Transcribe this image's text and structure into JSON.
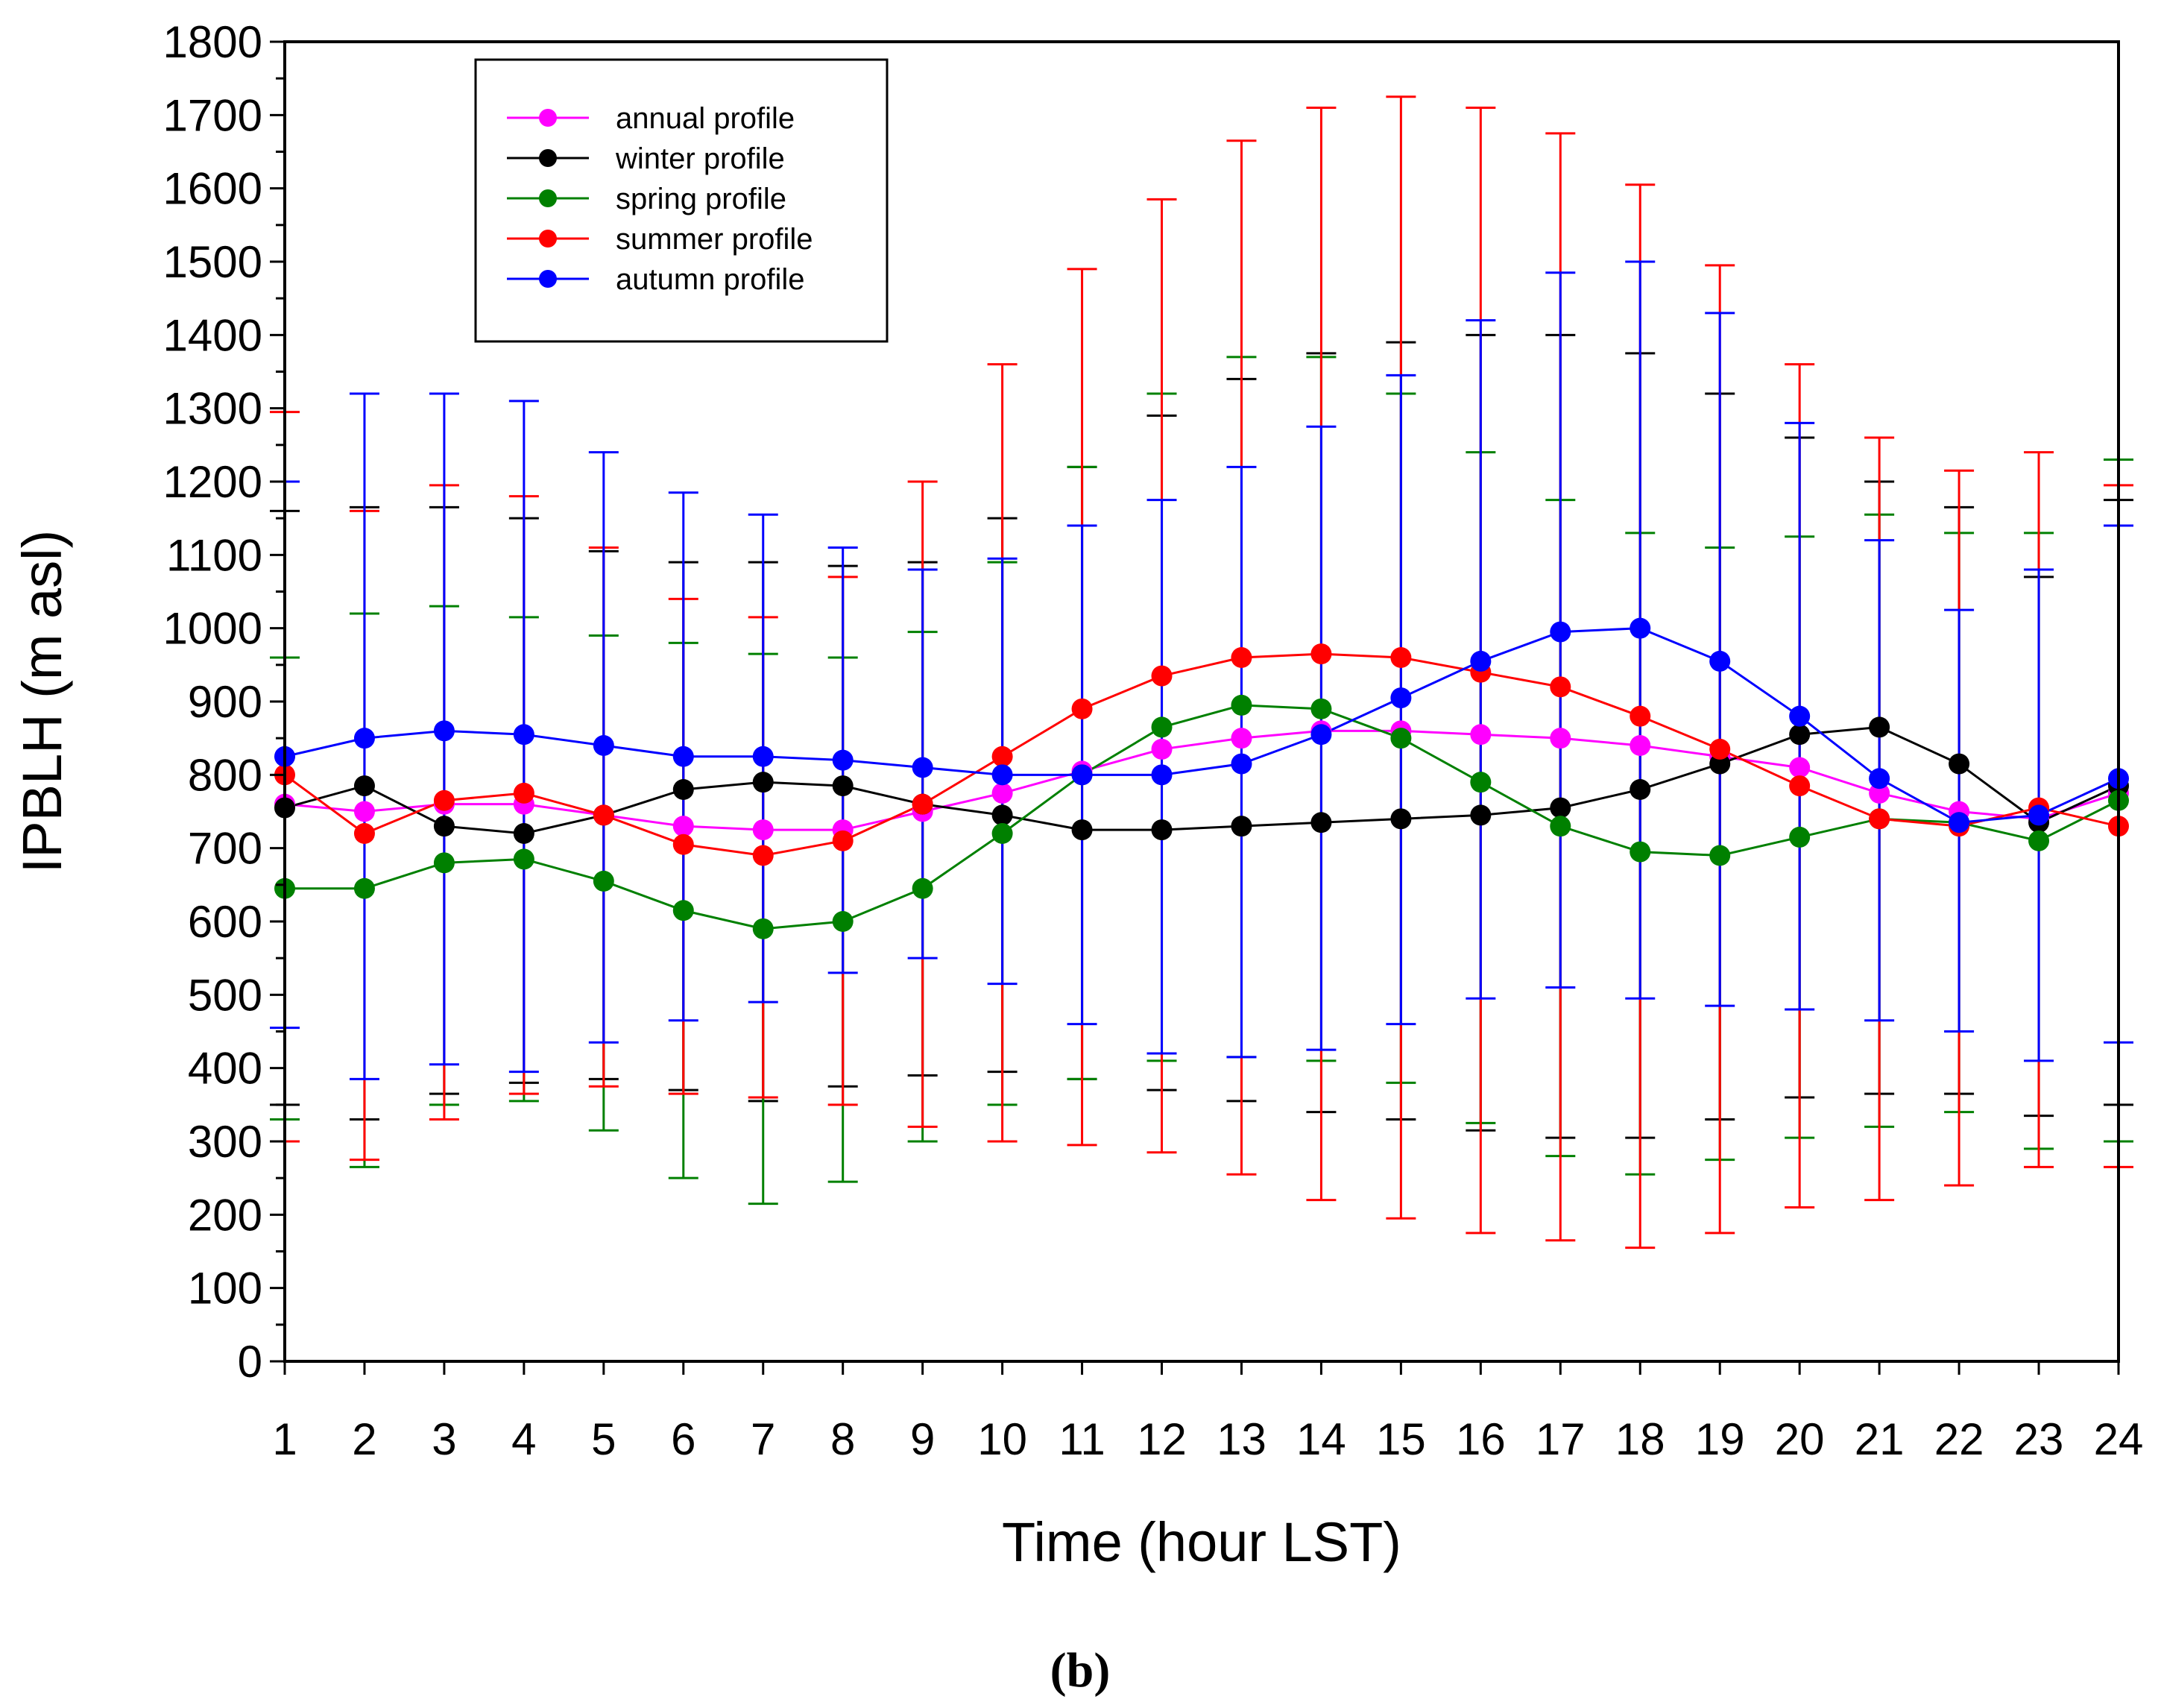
{
  "chart_data": {
    "type": "line",
    "title": "",
    "xlabel": "Time (hour LST)",
    "ylabel": "IPBLH (m asl)",
    "caption": "(b)",
    "x": [
      1,
      2,
      3,
      4,
      5,
      6,
      7,
      8,
      9,
      10,
      11,
      12,
      13,
      14,
      15,
      16,
      17,
      18,
      19,
      20,
      21,
      22,
      23,
      24
    ],
    "x_tick_labels": [
      "1",
      "2",
      "3",
      "4",
      "5",
      "6",
      "7",
      "8",
      "9",
      "10",
      "11",
      "12",
      "13",
      "14",
      "15",
      "16",
      "17",
      "18",
      "19",
      "20",
      "21",
      "22",
      "23",
      "24"
    ],
    "xlim": [
      1,
      24
    ],
    "ylim": [
      0,
      1800
    ],
    "y_ticks": [
      0,
      100,
      200,
      300,
      400,
      500,
      600,
      700,
      800,
      900,
      1000,
      1100,
      1200,
      1300,
      1400,
      1500,
      1600,
      1700,
      1800
    ],
    "y_tick_labels": [
      "0",
      "100",
      "200",
      "300",
      "400",
      "500",
      "600",
      "700",
      "800",
      "900",
      "1000",
      "1100",
      "1200",
      "1300",
      "1400",
      "1500",
      "1600",
      "1700",
      "1800"
    ],
    "grid": false,
    "legend_position": "top-left",
    "series": [
      {
        "name": "annual profile",
        "color": "#ff00ff",
        "values": [
          760,
          750,
          760,
          760,
          745,
          730,
          725,
          725,
          750,
          775,
          805,
          835,
          850,
          860,
          860,
          855,
          850,
          840,
          825,
          810,
          775,
          750,
          740,
          775
        ],
        "error_upper": null,
        "error_lower": null
      },
      {
        "name": "winter profile",
        "color": "#000000",
        "values": [
          755,
          785,
          730,
          720,
          745,
          780,
          790,
          785,
          760,
          745,
          725,
          725,
          730,
          735,
          740,
          745,
          755,
          780,
          815,
          855,
          865,
          815,
          735,
          785
        ],
        "error_upper": [
          1160,
          1165,
          1165,
          1150,
          1105,
          1090,
          1090,
          1085,
          1090,
          1150,
          1220,
          1290,
          1340,
          1375,
          1390,
          1400,
          1400,
          1375,
          1320,
          1260,
          1200,
          1165,
          1070,
          1175
        ],
        "error_lower": [
          350,
          330,
          365,
          380,
          385,
          370,
          355,
          375,
          390,
          395,
          385,
          370,
          355,
          340,
          330,
          315,
          305,
          305,
          330,
          360,
          365,
          365,
          335,
          350
        ]
      },
      {
        "name": "spring profile",
        "color": "#008000",
        "values": [
          645,
          645,
          680,
          685,
          655,
          615,
          590,
          600,
          645,
          720,
          800,
          865,
          895,
          890,
          850,
          790,
          730,
          695,
          690,
          715,
          740,
          735,
          710,
          765
        ],
        "error_upper": [
          960,
          1020,
          1030,
          1015,
          990,
          980,
          965,
          960,
          995,
          1090,
          1220,
          1320,
          1370,
          1370,
          1320,
          1240,
          1175,
          1130,
          1110,
          1125,
          1155,
          1130,
          1130,
          1230
        ],
        "error_lower": [
          330,
          265,
          350,
          355,
          315,
          250,
          215,
          245,
          300,
          350,
          385,
          410,
          415,
          410,
          380,
          325,
          280,
          255,
          275,
          305,
          320,
          340,
          290,
          300
        ]
      },
      {
        "name": "summer profile",
        "color": "#ff0000",
        "values": [
          800,
          720,
          765,
          775,
          745,
          705,
          690,
          710,
          760,
          825,
          890,
          935,
          960,
          965,
          960,
          940,
          920,
          880,
          835,
          785,
          740,
          730,
          755,
          730
        ],
        "error_upper": [
          1295,
          1160,
          1195,
          1180,
          1110,
          1040,
          1015,
          1070,
          1200,
          1360,
          1490,
          1585,
          1665,
          1710,
          1725,
          1710,
          1675,
          1605,
          1495,
          1360,
          1260,
          1215,
          1240,
          1195
        ],
        "error_lower": [
          300,
          275,
          330,
          365,
          375,
          365,
          360,
          350,
          320,
          300,
          295,
          285,
          255,
          220,
          195,
          175,
          165,
          155,
          175,
          210,
          220,
          240,
          265,
          265
        ]
      },
      {
        "name": "autumn profile",
        "color": "#0000ff",
        "values": [
          825,
          850,
          860,
          855,
          840,
          825,
          825,
          820,
          810,
          800,
          800,
          800,
          815,
          855,
          905,
          955,
          995,
          1000,
          955,
          880,
          795,
          735,
          745,
          795
        ],
        "error_upper": [
          1200,
          1320,
          1320,
          1310,
          1240,
          1185,
          1155,
          1110,
          1080,
          1095,
          1140,
          1175,
          1220,
          1275,
          1345,
          1420,
          1485,
          1500,
          1430,
          1280,
          1120,
          1025,
          1080,
          1140
        ],
        "error_lower": [
          455,
          385,
          405,
          395,
          435,
          465,
          490,
          530,
          550,
          515,
          460,
          420,
          415,
          425,
          460,
          495,
          510,
          495,
          485,
          480,
          465,
          450,
          410,
          435
        ]
      }
    ]
  }
}
